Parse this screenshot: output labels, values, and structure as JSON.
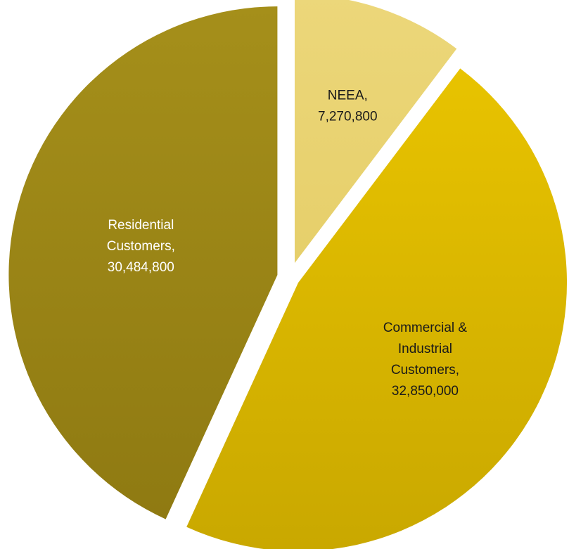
{
  "chart_data": {
    "type": "pie",
    "title": "",
    "slices": [
      {
        "name": "NEEA",
        "value": 7270800,
        "label_lines": [
          "NEEA,",
          "7,270,800"
        ],
        "color": "#ecd77a",
        "label_color": "#1a1a1a",
        "gradient_end": "#e6cf6a"
      },
      {
        "name": "Commercial & Industrial Customers",
        "value": 32850000,
        "label_lines": [
          "Commercial &",
          "Industrial",
          "Customers,",
          "32,850,000"
        ],
        "color": "#e8c300",
        "label_color": "#1a1a1a",
        "gradient_end": "#c9a800"
      },
      {
        "name": "Residential Customers",
        "value": 30484800,
        "label_lines": [
          "Residential",
          "Customers,",
          "30,484,800"
        ],
        "color": "#a58f1a",
        "label_color": "#ffffff",
        "gradient_end": "#8f7a12"
      }
    ],
    "start_angle_deg": 0,
    "direction": "clockwise",
    "legend": "none",
    "exploded": true
  }
}
